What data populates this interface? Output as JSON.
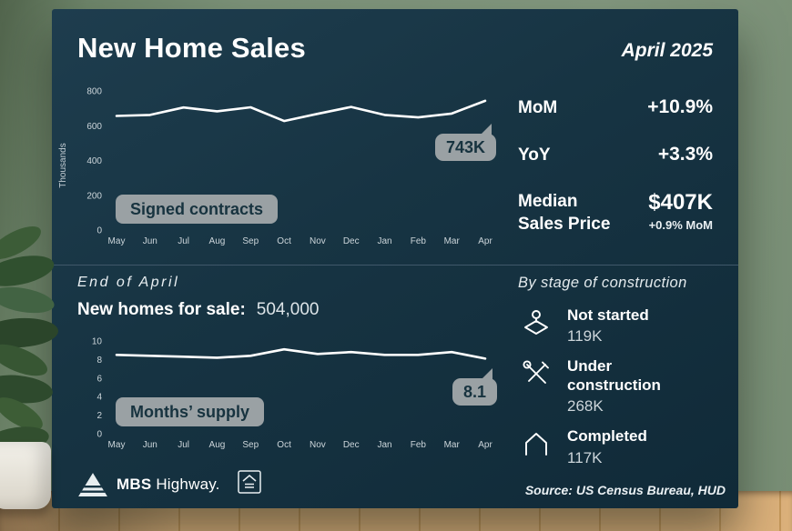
{
  "header": {
    "title": "New Home Sales",
    "date": "April 2025"
  },
  "stats": {
    "rows": [
      {
        "label": "MoM",
        "value": "+10.9%"
      },
      {
        "label": "YoY",
        "value": "+3.3%"
      }
    ],
    "median": {
      "label_line1": "Median",
      "label_line2": "Sales Price",
      "value": "$407K",
      "sub": "+0.9% MoM"
    }
  },
  "bottom": {
    "period": "End of April",
    "homes_label": "New homes for sale:",
    "homes_value": "504,000"
  },
  "stages": {
    "heading": "By stage of construction",
    "items": [
      {
        "icon": "land-pin-icon",
        "label": "Not started",
        "value": "119K"
      },
      {
        "icon": "tools-icon",
        "label": "Under construction",
        "value": "268K"
      },
      {
        "icon": "house-icon",
        "label": "Completed",
        "value": "117K"
      }
    ]
  },
  "footer": {
    "brand_bold": "MBS",
    "brand_rest": "Highway.",
    "source": "Source: US Census Bureau, HUD"
  },
  "chart_data": [
    {
      "type": "line",
      "title": "Signed contracts",
      "callout": "743K",
      "ylabel": "Thousands",
      "xlabel": "",
      "categories": [
        "May",
        "Jun",
        "Jul",
        "Aug",
        "Sep",
        "Oct",
        "Nov",
        "Dec",
        "Jan",
        "Feb",
        "Mar",
        "Apr"
      ],
      "values": [
        656,
        662,
        705,
        683,
        706,
        627,
        668,
        708,
        662,
        648,
        670,
        743
      ],
      "ylim": [
        0,
        800
      ],
      "yticks": [
        0,
        200,
        400,
        600,
        800
      ],
      "grid": false,
      "legend": "none"
    },
    {
      "type": "line",
      "title": "Months’ supply",
      "callout": "8.1",
      "ylabel": "",
      "xlabel": "",
      "categories": [
        "May",
        "Jun",
        "Jul",
        "Aug",
        "Sep",
        "Oct",
        "Nov",
        "Dec",
        "Jan",
        "Feb",
        "Mar",
        "Apr"
      ],
      "values": [
        8.5,
        8.4,
        8.3,
        8.2,
        8.4,
        9.1,
        8.6,
        8.8,
        8.5,
        8.5,
        8.8,
        8.1
      ],
      "ylim": [
        0,
        10
      ],
      "yticks": [
        0,
        2,
        4,
        6,
        8,
        10
      ],
      "grid": false,
      "legend": "none"
    }
  ]
}
